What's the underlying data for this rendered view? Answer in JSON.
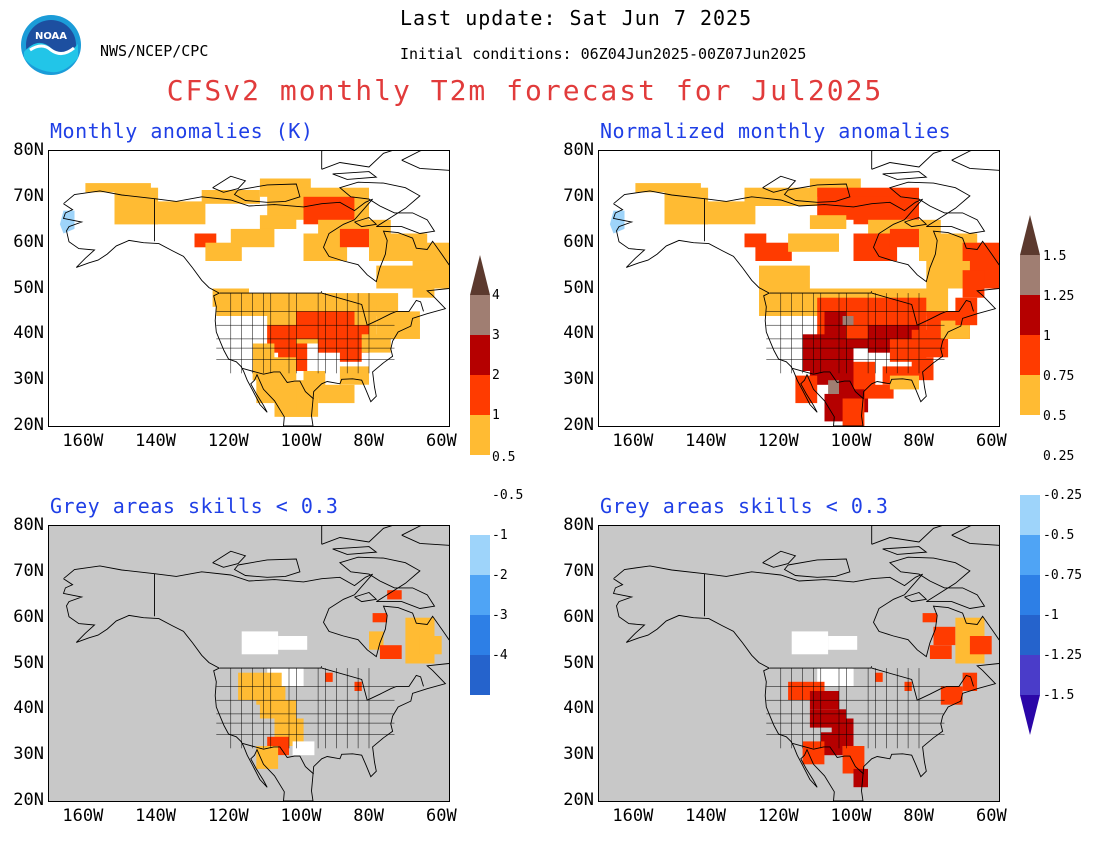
{
  "header": {
    "agency": "NWS/NCEP/CPC",
    "last_update": "Last update: Sat Jun 7 2025",
    "initial_conditions": "Initial conditions: 06Z04Jun2025-00Z07Jun2025",
    "title": "CFSv2 monthly T2m forecast for Jul2025",
    "logo_text": "NOAA"
  },
  "panels": {
    "top_left_title": "Monthly anomalies (K)",
    "top_right_title": "Normalized monthly anomalies",
    "bottom_left_title": "Grey areas skills < 0.3",
    "bottom_right_title": "Grey areas skills < 0.3"
  },
  "axes": {
    "lat_labels": [
      "80N",
      "70N",
      "60N",
      "50N",
      "40N",
      "30N",
      "20N"
    ],
    "lon_labels": [
      "160W",
      "140W",
      "120W",
      "100W",
      "80W",
      "60W"
    ]
  },
  "colorbars": {
    "anomaly_labels": [
      "4",
      "3",
      "2",
      "1",
      "0.5",
      "-0.5",
      "-1",
      "-2",
      "-3",
      "-4"
    ],
    "normalized_labels": [
      "1.5",
      "1.25",
      "1",
      "0.75",
      "0.5",
      "0.25",
      "-0.25",
      "-0.5",
      "-0.75",
      "-1",
      "-1.25",
      "-1.5"
    ],
    "colors": {
      "top_arrow": "#5c3a2e",
      "warm": [
        "#a07e72",
        "#b50000",
        "#ff3b00",
        "#ffbb33"
      ],
      "neutral": "#ffffff",
      "cool": [
        "#9ed4fa",
        "#4fa4f5",
        "#2d7fe6",
        "#2563cc",
        "#4a3cc9"
      ],
      "bottom_arrow": "#2b06a8"
    }
  },
  "map_colors": {
    "light_orange": "#ffbb33",
    "orange_red": "#ff3b00",
    "dark_red": "#b50000",
    "brown": "#a07e72",
    "light_blue": "#9ed4fa",
    "grey_mask": "#c8c8c8",
    "outline": "#000000"
  }
}
